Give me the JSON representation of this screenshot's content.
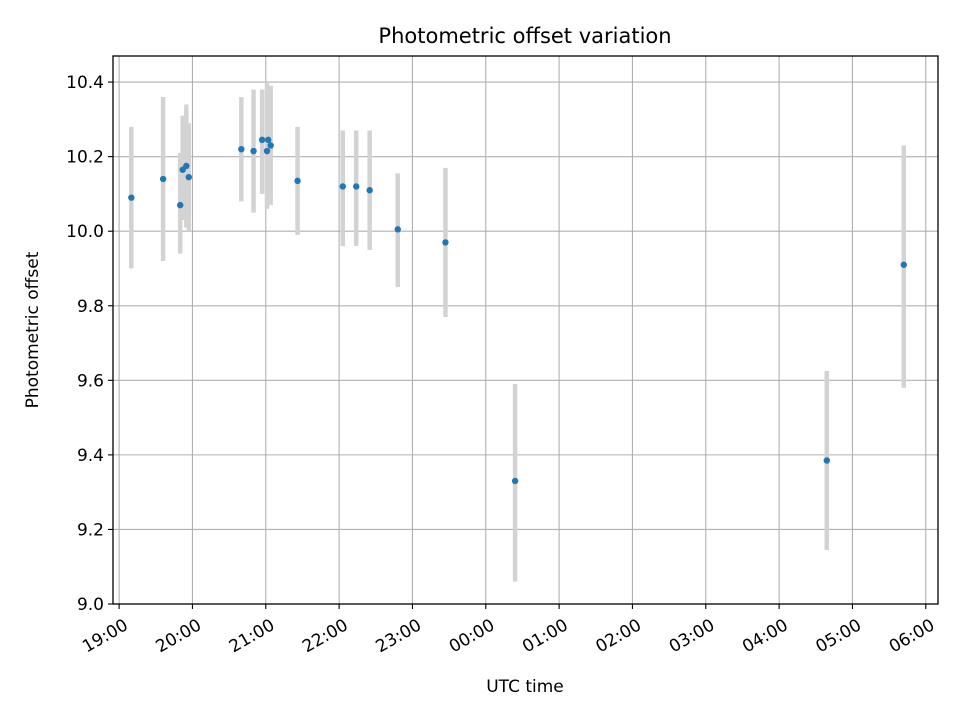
{
  "chart_data": {
    "type": "scatter",
    "title": "Photometric offset variation",
    "xlabel": "UTC time",
    "ylabel": "Photometric offset",
    "x_tick_labels": [
      "19:00",
      "20:00",
      "21:00",
      "22:00",
      "23:00",
      "00:00",
      "01:00",
      "02:00",
      "03:00",
      "04:00",
      "05:00",
      "06:00"
    ],
    "y_tick_labels": [
      "9.0",
      "9.2",
      "9.4",
      "9.6",
      "9.8",
      "10.0",
      "10.2",
      "10.4"
    ],
    "xlim": [
      "18:55",
      "06:10"
    ],
    "ylim": [
      9.0,
      10.47
    ],
    "grid": true,
    "points": [
      {
        "t": "19:10",
        "y": 10.09,
        "lo": 9.9,
        "hi": 10.28
      },
      {
        "t": "19:36",
        "y": 10.14,
        "lo": 9.92,
        "hi": 10.36
      },
      {
        "t": "19:50",
        "y": 10.07,
        "lo": 9.94,
        "hi": 10.21
      },
      {
        "t": "19:52",
        "y": 10.165,
        "lo": 10.03,
        "hi": 10.31
      },
      {
        "t": "19:55",
        "y": 10.175,
        "lo": 10.01,
        "hi": 10.34
      },
      {
        "t": "19:57",
        "y": 10.145,
        "lo": 10.0,
        "hi": 10.29
      },
      {
        "t": "20:40",
        "y": 10.22,
        "lo": 10.08,
        "hi": 10.36
      },
      {
        "t": "20:50",
        "y": 10.215,
        "lo": 10.05,
        "hi": 10.38
      },
      {
        "t": "20:57",
        "y": 10.245,
        "lo": 10.1,
        "hi": 10.38
      },
      {
        "t": "21:01",
        "y": 10.215,
        "lo": 10.06,
        "hi": 10.4
      },
      {
        "t": "21:02",
        "y": 10.245,
        "lo": 10.08,
        "hi": 10.39
      },
      {
        "t": "21:04",
        "y": 10.23,
        "lo": 10.07,
        "hi": 10.39
      },
      {
        "t": "21:26",
        "y": 10.135,
        "lo": 9.99,
        "hi": 10.28
      },
      {
        "t": "22:03",
        "y": 10.12,
        "lo": 9.96,
        "hi": 10.27
      },
      {
        "t": "22:14",
        "y": 10.12,
        "lo": 9.96,
        "hi": 10.27
      },
      {
        "t": "22:25",
        "y": 10.11,
        "lo": 9.95,
        "hi": 10.27
      },
      {
        "t": "22:48",
        "y": 10.005,
        "lo": 9.85,
        "hi": 10.155
      },
      {
        "t": "23:27",
        "y": 9.97,
        "lo": 9.77,
        "hi": 10.17
      },
      {
        "t": "00:24",
        "y": 9.33,
        "lo": 9.06,
        "hi": 9.59
      },
      {
        "t": "04:39",
        "y": 9.385,
        "lo": 9.145,
        "hi": 9.625
      },
      {
        "t": "05:42",
        "y": 9.91,
        "lo": 9.58,
        "hi": 10.23
      }
    ]
  },
  "colors": {
    "point": "#1f77b4",
    "errorbar": "#d3d3d3",
    "grid": "#b0b0b0"
  }
}
